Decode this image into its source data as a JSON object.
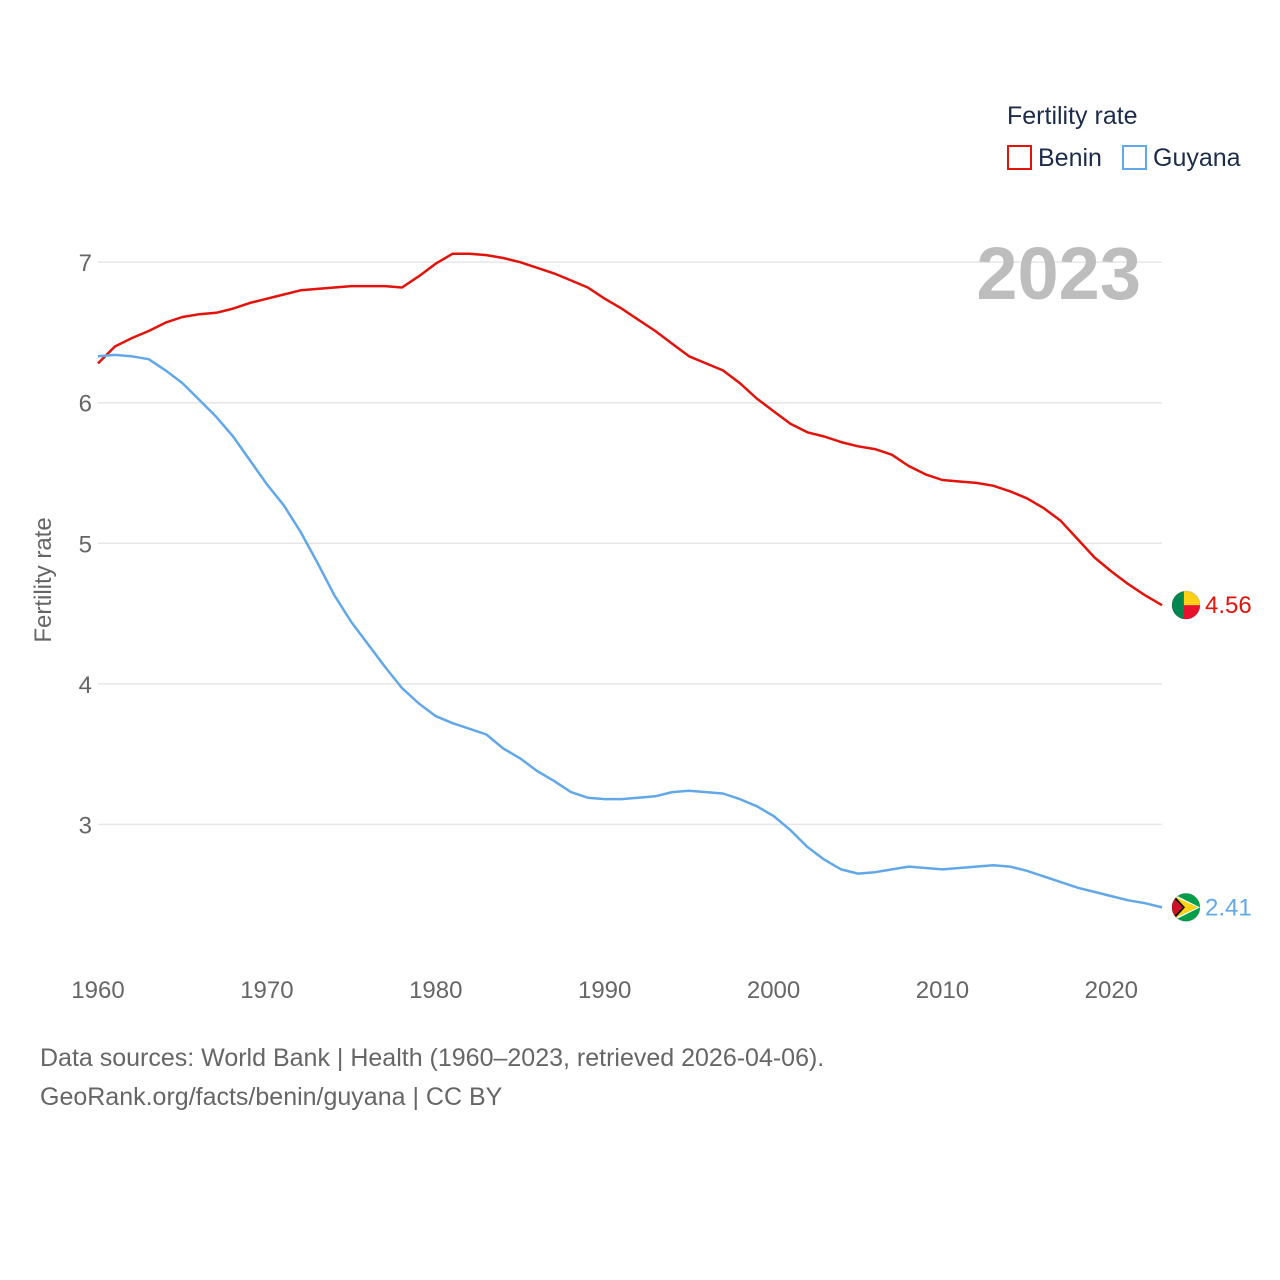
{
  "chart_data": {
    "type": "line",
    "year_label": "2023",
    "ylabel": "Fertility rate",
    "xlim": [
      1960,
      2023
    ],
    "ylim": [
      2.0,
      7.3
    ],
    "xticks": [
      1960,
      1970,
      1980,
      1990,
      2000,
      2010,
      2020
    ],
    "yticks": [
      3,
      4,
      5,
      6,
      7
    ],
    "legend": {
      "title": "Fertility rate",
      "position": "top-right"
    },
    "series": [
      {
        "name": "Benin",
        "color": "#e3120b",
        "end_label": "4.56",
        "flag_icon": "benin-flag-icon",
        "x": [
          1960,
          1961,
          1962,
          1963,
          1964,
          1965,
          1966,
          1967,
          1968,
          1969,
          1970,
          1971,
          1972,
          1973,
          1974,
          1975,
          1976,
          1977,
          1978,
          1979,
          1980,
          1981,
          1982,
          1983,
          1984,
          1985,
          1986,
          1987,
          1988,
          1989,
          1990,
          1991,
          1992,
          1993,
          1994,
          1995,
          1996,
          1997,
          1998,
          1999,
          2000,
          2001,
          2002,
          2003,
          2004,
          2005,
          2006,
          2007,
          2008,
          2009,
          2010,
          2011,
          2012,
          2013,
          2014,
          2015,
          2016,
          2017,
          2018,
          2019,
          2020,
          2021,
          2022,
          2023
        ],
        "values": [
          6.28,
          6.4,
          6.46,
          6.51,
          6.57,
          6.61,
          6.63,
          6.64,
          6.67,
          6.71,
          6.74,
          6.77,
          6.8,
          6.81,
          6.82,
          6.83,
          6.83,
          6.83,
          6.82,
          6.9,
          6.99,
          7.06,
          7.06,
          7.05,
          7.03,
          7.0,
          6.96,
          6.92,
          6.87,
          6.82,
          6.74,
          6.67,
          6.59,
          6.51,
          6.42,
          6.33,
          6.28,
          6.23,
          6.14,
          6.03,
          5.94,
          5.85,
          5.79,
          5.76,
          5.72,
          5.69,
          5.67,
          5.63,
          5.55,
          5.49,
          5.45,
          5.44,
          5.43,
          5.41,
          5.37,
          5.32,
          5.25,
          5.16,
          5.03,
          4.9,
          4.8,
          4.71,
          4.63,
          4.56
        ]
      },
      {
        "name": "Guyana",
        "color": "#62a8e8",
        "end_label": "2.41",
        "flag_icon": "guyana-flag-icon",
        "x": [
          1960,
          1961,
          1962,
          1963,
          1964,
          1965,
          1966,
          1967,
          1968,
          1969,
          1970,
          1971,
          1972,
          1973,
          1974,
          1975,
          1976,
          1977,
          1978,
          1979,
          1980,
          1981,
          1982,
          1983,
          1984,
          1985,
          1986,
          1987,
          1988,
          1989,
          1990,
          1991,
          1992,
          1993,
          1994,
          1995,
          1996,
          1997,
          1998,
          1999,
          2000,
          2001,
          2002,
          2003,
          2004,
          2005,
          2006,
          2007,
          2008,
          2009,
          2010,
          2011,
          2012,
          2013,
          2014,
          2015,
          2016,
          2017,
          2018,
          2019,
          2020,
          2021,
          2022,
          2023
        ],
        "values": [
          6.33,
          6.34,
          6.33,
          6.31,
          6.23,
          6.14,
          6.02,
          5.9,
          5.76,
          5.59,
          5.42,
          5.27,
          5.08,
          4.86,
          4.63,
          4.44,
          4.28,
          4.12,
          3.97,
          3.86,
          3.77,
          3.72,
          3.68,
          3.64,
          3.54,
          3.47,
          3.38,
          3.31,
          3.23,
          3.19,
          3.18,
          3.18,
          3.19,
          3.2,
          3.23,
          3.24,
          3.23,
          3.22,
          3.18,
          3.13,
          3.06,
          2.96,
          2.84,
          2.75,
          2.68,
          2.65,
          2.66,
          2.68,
          2.7,
          2.69,
          2.68,
          2.69,
          2.7,
          2.71,
          2.7,
          2.67,
          2.63,
          2.59,
          2.55,
          2.52,
          2.49,
          2.46,
          2.44,
          2.41
        ]
      }
    ]
  },
  "footer": {
    "sources": "Data sources: World Bank | Health (1960–2023, retrieved 2026-04-06).",
    "attribution": "GeoRank.org/facts/benin/guyana | CC BY"
  }
}
